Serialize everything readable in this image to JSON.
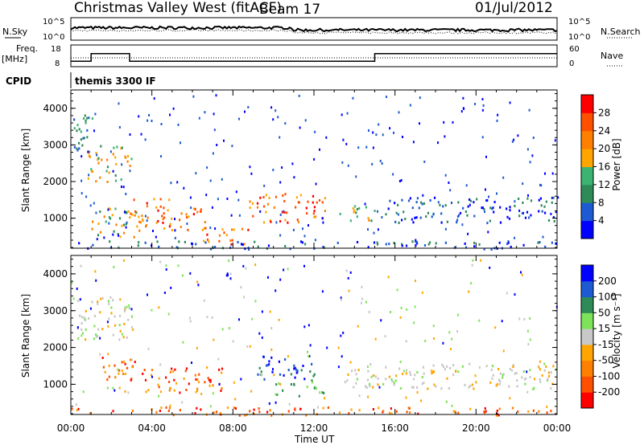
{
  "header": {
    "site": "Christmas Valley West (fitACF)",
    "beam": "Beam 17",
    "date": "01/Jul/2012"
  },
  "noise_panel": {
    "left_label": "N.Sky",
    "left_ticks": [
      "10^5",
      "10^0"
    ],
    "right_label": "N.Search",
    "right_ticks": [
      "10^5",
      "10^0"
    ]
  },
  "freq_panel": {
    "left_label": "Freq.",
    "left_unit": "[MHz]",
    "left_ticks": [
      "18",
      "8"
    ],
    "right_label": "Nave",
    "right_ticks": [
      "60",
      "0"
    ]
  },
  "cpid": {
    "label": "CPID",
    "value": "themis 3300 IF"
  },
  "power_panel": {
    "ylabel": "Slant Range [km]",
    "colorbar_label": "Power [dB]",
    "colorbar_ticks": [
      "4",
      "8",
      "12",
      "16",
      "20",
      "24",
      "28"
    ],
    "colorbar_colors": [
      "#0000ff",
      "#1e5ad2",
      "#2e8b57",
      "#3cb371",
      "#ffa500",
      "#ff7f00",
      "#ff5000",
      "#ff0000"
    ]
  },
  "velocity_panel": {
    "ylabel": "Slant Range [km]",
    "colorbar_label": "Velocity [m s⁻¹]",
    "colorbar_ticks": [
      "200",
      "100",
      "50",
      "15",
      "-15",
      "-50",
      "-100",
      "-200"
    ],
    "colorbar_colors": [
      "#0000ff",
      "#1e5ad2",
      "#2e8b57",
      "#7fe35a",
      "#c8c8c8",
      "#ffa500",
      "#ff7f00",
      "#ff5000",
      "#ff0000"
    ]
  },
  "chart_data": {
    "type": "heatmap",
    "xlabel": "Time UT",
    "x_ticks": [
      "00:00",
      "04:00",
      "08:00",
      "12:00",
      "16:00",
      "20:00",
      "00:00"
    ],
    "x_range_hours": [
      0,
      24
    ],
    "y_ticks": [
      1000,
      2000,
      3000,
      4000
    ],
    "ylim": [
      180,
      4500
    ],
    "freq_mhz": [
      {
        "start_h": 0,
        "end_h": 1.0,
        "value": 10.5
      },
      {
        "start_h": 1.0,
        "end_h": 2.9,
        "value": 14
      },
      {
        "start_h": 2.9,
        "end_h": 15.0,
        "value": 10.5
      },
      {
        "start_h": 15.0,
        "end_h": 24,
        "value": 14
      }
    ],
    "data_gap_hours": [
      12.7,
      13.1
    ],
    "power_regions": [
      {
        "t0": 0.0,
        "t1": 1.2,
        "r0": 2800,
        "r1": 3900,
        "level": "low-mid"
      },
      {
        "t0": 0.8,
        "t1": 3.0,
        "r0": 2000,
        "r1": 3000,
        "level": "mid"
      },
      {
        "t0": 1.0,
        "t1": 3.5,
        "r0": 500,
        "r1": 1300,
        "level": "mid"
      },
      {
        "t0": 2.8,
        "t1": 5.0,
        "r0": 800,
        "r1": 1600,
        "level": "high"
      },
      {
        "t0": 4.5,
        "t1": 6.8,
        "r0": 700,
        "r1": 1300,
        "level": "high"
      },
      {
        "t0": 6.5,
        "t1": 8.8,
        "r0": 300,
        "r1": 800,
        "level": "high"
      },
      {
        "t0": 8.8,
        "t1": 12.6,
        "r0": 900,
        "r1": 1700,
        "level": "high"
      },
      {
        "t0": 13.2,
        "t1": 15.0,
        "r0": 900,
        "r1": 1400,
        "level": "mid"
      },
      {
        "t0": 15.5,
        "t1": 24.0,
        "r0": 900,
        "r1": 1600,
        "level": "low"
      },
      {
        "t0": 0.0,
        "t1": 24.0,
        "r0": 180,
        "r1": 400,
        "level": "low"
      }
    ],
    "velocity_regions": [
      {
        "t0": 0.3,
        "t1": 3.0,
        "r0": 2200,
        "r1": 3400,
        "vel": "near-zero"
      },
      {
        "t0": 1.5,
        "t1": 3.5,
        "r0": 1100,
        "r1": 1800,
        "vel": "negative"
      },
      {
        "t0": 3.5,
        "t1": 7.5,
        "r0": 800,
        "r1": 1500,
        "vel": "negative"
      },
      {
        "t0": 9.0,
        "t1": 12.0,
        "r0": 1100,
        "r1": 1800,
        "vel": "positive"
      },
      {
        "t0": 10.0,
        "t1": 12.5,
        "r0": 700,
        "r1": 1100,
        "vel": "small-positive"
      },
      {
        "t0": 13.5,
        "t1": 24.0,
        "r0": 900,
        "r1": 1600,
        "vel": "near-zero"
      },
      {
        "t0": 0.0,
        "t1": 24.0,
        "r0": 180,
        "r1": 400,
        "vel": "negative"
      }
    ]
  }
}
